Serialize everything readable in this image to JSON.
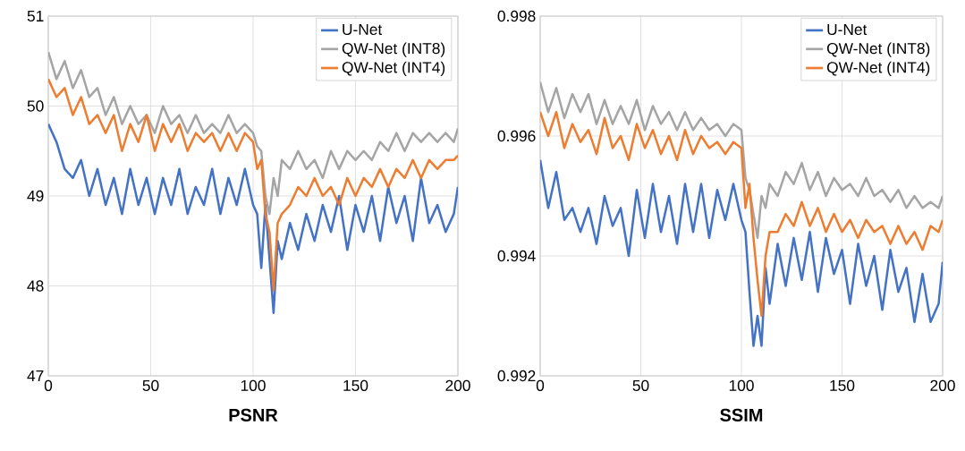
{
  "chart_data": [
    {
      "type": "line",
      "xlabel": "PSNR",
      "xlim": [
        0,
        200
      ],
      "ylim": [
        47,
        51
      ],
      "xticks": [
        0,
        50,
        100,
        150,
        200
      ],
      "yticks": [
        47,
        48,
        49,
        50,
        51
      ],
      "grid": true,
      "legend": "top right",
      "x": [
        0,
        4,
        8,
        12,
        16,
        20,
        24,
        28,
        32,
        36,
        40,
        44,
        48,
        52,
        56,
        60,
        64,
        68,
        72,
        76,
        80,
        84,
        88,
        92,
        96,
        100,
        102,
        104,
        106,
        108,
        110,
        112,
        114,
        118,
        122,
        126,
        130,
        134,
        138,
        142,
        146,
        150,
        154,
        158,
        162,
        166,
        170,
        174,
        178,
        182,
        186,
        190,
        194,
        198,
        200
      ],
      "series": [
        {
          "name": "U-Net",
          "color": "#4472c4",
          "values": [
            49.8,
            49.6,
            49.3,
            49.2,
            49.4,
            49.0,
            49.3,
            48.9,
            49.2,
            48.8,
            49.3,
            48.9,
            49.2,
            48.8,
            49.2,
            48.9,
            49.3,
            48.8,
            49.1,
            48.9,
            49.3,
            48.8,
            49.2,
            48.9,
            49.3,
            48.9,
            48.8,
            48.2,
            48.9,
            48.3,
            47.7,
            48.5,
            48.3,
            48.7,
            48.4,
            48.8,
            48.5,
            48.9,
            48.6,
            49.0,
            48.4,
            48.9,
            48.6,
            49.0,
            48.5,
            49.1,
            48.7,
            49.0,
            48.5,
            49.2,
            48.7,
            48.9,
            48.6,
            48.8,
            49.1
          ]
        },
        {
          "name": "QW-Net (INT8)",
          "color": "#a5a5a5",
          "values": [
            50.6,
            50.3,
            50.5,
            50.2,
            50.4,
            50.1,
            50.2,
            49.9,
            50.1,
            49.8,
            50.0,
            49.8,
            49.9,
            49.7,
            50.0,
            49.8,
            49.9,
            49.7,
            49.9,
            49.7,
            49.8,
            49.7,
            49.9,
            49.7,
            49.8,
            49.7,
            49.55,
            49.5,
            49.0,
            48.8,
            49.2,
            49.0,
            49.4,
            49.3,
            49.5,
            49.3,
            49.4,
            49.2,
            49.5,
            49.3,
            49.5,
            49.4,
            49.5,
            49.4,
            49.6,
            49.5,
            49.7,
            49.5,
            49.7,
            49.6,
            49.7,
            49.6,
            49.7,
            49.6,
            49.75
          ]
        },
        {
          "name": "QW-Net (INT4)",
          "color": "#ed7d31",
          "values": [
            50.3,
            50.1,
            50.2,
            49.9,
            50.1,
            49.8,
            49.9,
            49.7,
            49.9,
            49.5,
            49.8,
            49.6,
            49.9,
            49.5,
            49.8,
            49.6,
            49.8,
            49.5,
            49.7,
            49.6,
            49.7,
            49.5,
            49.7,
            49.5,
            49.7,
            49.6,
            49.3,
            49.4,
            48.8,
            48.6,
            47.95,
            48.7,
            48.8,
            48.9,
            49.1,
            49.0,
            49.2,
            49.0,
            49.1,
            48.9,
            49.2,
            49.0,
            49.2,
            49.1,
            49.3,
            49.1,
            49.3,
            49.2,
            49.4,
            49.2,
            49.4,
            49.3,
            49.4,
            49.4,
            49.45
          ]
        }
      ]
    },
    {
      "type": "line",
      "xlabel": "SSIM",
      "xlim": [
        0,
        200
      ],
      "ylim": [
        0.992,
        0.998
      ],
      "xticks": [
        0,
        50,
        100,
        150,
        200
      ],
      "yticks": [
        0.992,
        0.994,
        0.996,
        0.998
      ],
      "grid": true,
      "legend": "top right",
      "x": [
        0,
        4,
        8,
        12,
        16,
        20,
        24,
        28,
        32,
        36,
        40,
        44,
        48,
        52,
        56,
        60,
        64,
        68,
        72,
        76,
        80,
        84,
        88,
        92,
        96,
        100,
        102,
        104,
        106,
        108,
        110,
        112,
        114,
        118,
        122,
        126,
        130,
        134,
        138,
        142,
        146,
        150,
        154,
        158,
        162,
        166,
        170,
        174,
        178,
        182,
        186,
        190,
        194,
        198,
        200
      ],
      "series": [
        {
          "name": "U-Net",
          "color": "#4472c4",
          "values": [
            0.9956,
            0.9948,
            0.9954,
            0.9946,
            0.9948,
            0.9944,
            0.9948,
            0.9942,
            0.995,
            0.9945,
            0.9948,
            0.994,
            0.9951,
            0.9943,
            0.9952,
            0.9944,
            0.995,
            0.9942,
            0.9952,
            0.9944,
            0.9952,
            0.9943,
            0.9951,
            0.9946,
            0.9952,
            0.9946,
            0.9944,
            0.9934,
            0.9925,
            0.993,
            0.9925,
            0.9938,
            0.9932,
            0.9942,
            0.9935,
            0.9943,
            0.9936,
            0.9944,
            0.9934,
            0.9943,
            0.9937,
            0.9941,
            0.9932,
            0.9942,
            0.9935,
            0.994,
            0.9931,
            0.9941,
            0.9934,
            0.9938,
            0.9929,
            0.9937,
            0.9929,
            0.9932,
            0.9939
          ]
        },
        {
          "name": "QW-Net (INT8)",
          "color": "#a5a5a5",
          "values": [
            0.9969,
            0.9964,
            0.9968,
            0.9963,
            0.9967,
            0.9964,
            0.9967,
            0.9962,
            0.9966,
            0.9962,
            0.9965,
            0.9962,
            0.9966,
            0.9961,
            0.9965,
            0.9962,
            0.9964,
            0.9961,
            0.9964,
            0.9961,
            0.9963,
            0.9961,
            0.9962,
            0.996,
            0.9962,
            0.9961,
            0.9953,
            0.9951,
            0.9947,
            0.9943,
            0.995,
            0.9948,
            0.9952,
            0.995,
            0.9954,
            0.9952,
            0.99555,
            0.9951,
            0.9954,
            0.995,
            0.9953,
            0.9951,
            0.9952,
            0.995,
            0.9953,
            0.995,
            0.9951,
            0.9949,
            0.9951,
            0.9948,
            0.995,
            0.9948,
            0.9949,
            0.9948,
            0.995
          ]
        },
        {
          "name": "QW-Net (INT4)",
          "color": "#ed7d31",
          "values": [
            0.9964,
            0.996,
            0.9964,
            0.9958,
            0.9962,
            0.9959,
            0.9961,
            0.9957,
            0.9963,
            0.9958,
            0.996,
            0.9956,
            0.9962,
            0.9958,
            0.9961,
            0.9957,
            0.996,
            0.9956,
            0.9961,
            0.9957,
            0.996,
            0.9958,
            0.9959,
            0.9957,
            0.9959,
            0.9958,
            0.9948,
            0.9952,
            0.9943,
            0.9936,
            0.993,
            0.994,
            0.9944,
            0.9944,
            0.9947,
            0.9945,
            0.9949,
            0.9945,
            0.9948,
            0.9944,
            0.9947,
            0.9944,
            0.9946,
            0.9943,
            0.9946,
            0.9944,
            0.9945,
            0.9942,
            0.9945,
            0.9942,
            0.9944,
            0.9941,
            0.9945,
            0.9944,
            0.9946
          ]
        }
      ]
    }
  ]
}
